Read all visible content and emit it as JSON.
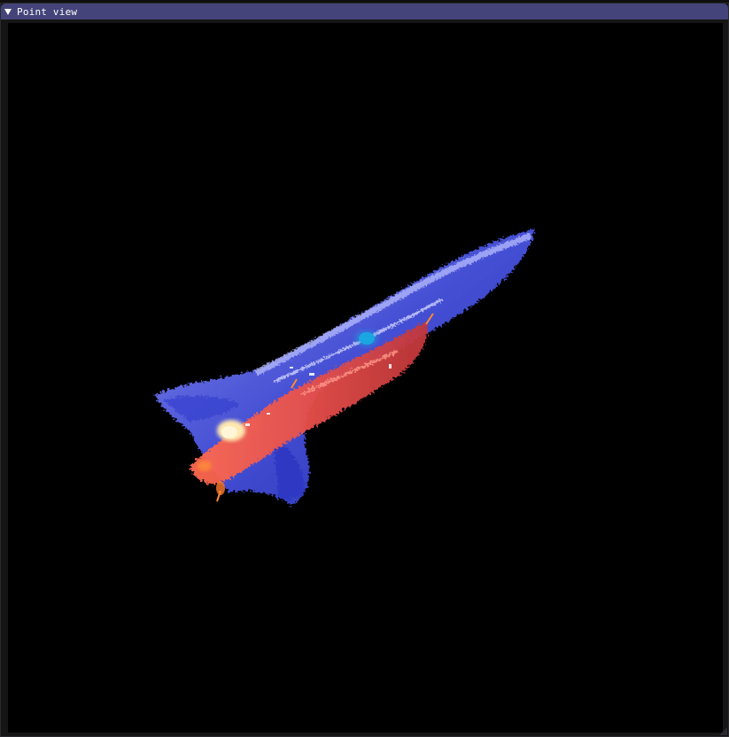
{
  "window": {
    "title": "Point view"
  },
  "colors": {
    "titlebar": "#44447a",
    "viewport_background": "#000000",
    "shell_color": "#3b46d9",
    "interior_color": "#e8504a",
    "highlight_color": "#ffe8b0",
    "accent_cyan": "#1aa6e0"
  }
}
